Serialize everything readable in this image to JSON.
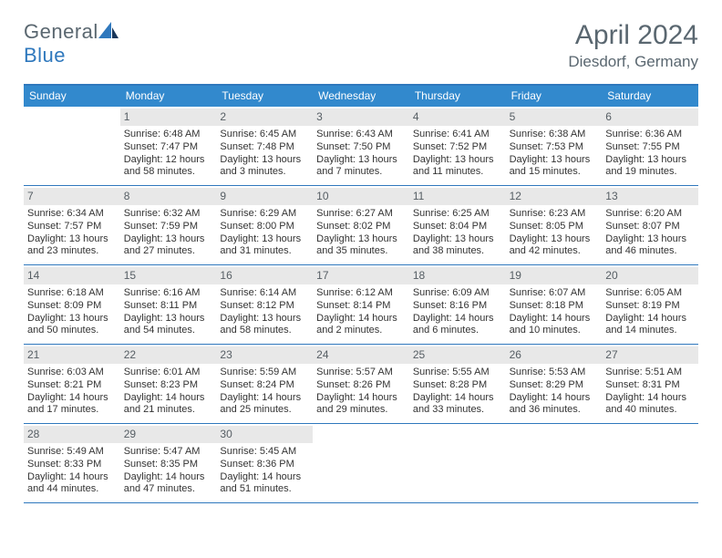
{
  "logo": {
    "word1": "General",
    "word2": "Blue",
    "colors": {
      "gray": "#5a6770",
      "blue": "#2f78bd"
    }
  },
  "title": {
    "month": "April 2024",
    "location": "Diesdorf, Germany"
  },
  "colors": {
    "headerBar": "#3289cd",
    "ruleBlue": "#2f78bd",
    "dayStrip": "#e8e8e8",
    "dayText": "#565e64",
    "bodyText": "#333333",
    "bg": "#ffffff"
  },
  "layout": {
    "cols": 7,
    "rows": 5,
    "cell_min_h": 86
  },
  "daysOfWeek": [
    "Sunday",
    "Monday",
    "Tuesday",
    "Wednesday",
    "Thursday",
    "Friday",
    "Saturday"
  ],
  "weeks": [
    [
      null,
      {
        "n": "1",
        "sr": "Sunrise: 6:48 AM",
        "ss": "Sunset: 7:47 PM",
        "d1": "Daylight: 12 hours",
        "d2": "and 58 minutes."
      },
      {
        "n": "2",
        "sr": "Sunrise: 6:45 AM",
        "ss": "Sunset: 7:48 PM",
        "d1": "Daylight: 13 hours",
        "d2": "and 3 minutes."
      },
      {
        "n": "3",
        "sr": "Sunrise: 6:43 AM",
        "ss": "Sunset: 7:50 PM",
        "d1": "Daylight: 13 hours",
        "d2": "and 7 minutes."
      },
      {
        "n": "4",
        "sr": "Sunrise: 6:41 AM",
        "ss": "Sunset: 7:52 PM",
        "d1": "Daylight: 13 hours",
        "d2": "and 11 minutes."
      },
      {
        "n": "5",
        "sr": "Sunrise: 6:38 AM",
        "ss": "Sunset: 7:53 PM",
        "d1": "Daylight: 13 hours",
        "d2": "and 15 minutes."
      },
      {
        "n": "6",
        "sr": "Sunrise: 6:36 AM",
        "ss": "Sunset: 7:55 PM",
        "d1": "Daylight: 13 hours",
        "d2": "and 19 minutes."
      }
    ],
    [
      {
        "n": "7",
        "sr": "Sunrise: 6:34 AM",
        "ss": "Sunset: 7:57 PM",
        "d1": "Daylight: 13 hours",
        "d2": "and 23 minutes."
      },
      {
        "n": "8",
        "sr": "Sunrise: 6:32 AM",
        "ss": "Sunset: 7:59 PM",
        "d1": "Daylight: 13 hours",
        "d2": "and 27 minutes."
      },
      {
        "n": "9",
        "sr": "Sunrise: 6:29 AM",
        "ss": "Sunset: 8:00 PM",
        "d1": "Daylight: 13 hours",
        "d2": "and 31 minutes."
      },
      {
        "n": "10",
        "sr": "Sunrise: 6:27 AM",
        "ss": "Sunset: 8:02 PM",
        "d1": "Daylight: 13 hours",
        "d2": "and 35 minutes."
      },
      {
        "n": "11",
        "sr": "Sunrise: 6:25 AM",
        "ss": "Sunset: 8:04 PM",
        "d1": "Daylight: 13 hours",
        "d2": "and 38 minutes."
      },
      {
        "n": "12",
        "sr": "Sunrise: 6:23 AM",
        "ss": "Sunset: 8:05 PM",
        "d1": "Daylight: 13 hours",
        "d2": "and 42 minutes."
      },
      {
        "n": "13",
        "sr": "Sunrise: 6:20 AM",
        "ss": "Sunset: 8:07 PM",
        "d1": "Daylight: 13 hours",
        "d2": "and 46 minutes."
      }
    ],
    [
      {
        "n": "14",
        "sr": "Sunrise: 6:18 AM",
        "ss": "Sunset: 8:09 PM",
        "d1": "Daylight: 13 hours",
        "d2": "and 50 minutes."
      },
      {
        "n": "15",
        "sr": "Sunrise: 6:16 AM",
        "ss": "Sunset: 8:11 PM",
        "d1": "Daylight: 13 hours",
        "d2": "and 54 minutes."
      },
      {
        "n": "16",
        "sr": "Sunrise: 6:14 AM",
        "ss": "Sunset: 8:12 PM",
        "d1": "Daylight: 13 hours",
        "d2": "and 58 minutes."
      },
      {
        "n": "17",
        "sr": "Sunrise: 6:12 AM",
        "ss": "Sunset: 8:14 PM",
        "d1": "Daylight: 14 hours",
        "d2": "and 2 minutes."
      },
      {
        "n": "18",
        "sr": "Sunrise: 6:09 AM",
        "ss": "Sunset: 8:16 PM",
        "d1": "Daylight: 14 hours",
        "d2": "and 6 minutes."
      },
      {
        "n": "19",
        "sr": "Sunrise: 6:07 AM",
        "ss": "Sunset: 8:18 PM",
        "d1": "Daylight: 14 hours",
        "d2": "and 10 minutes."
      },
      {
        "n": "20",
        "sr": "Sunrise: 6:05 AM",
        "ss": "Sunset: 8:19 PM",
        "d1": "Daylight: 14 hours",
        "d2": "and 14 minutes."
      }
    ],
    [
      {
        "n": "21",
        "sr": "Sunrise: 6:03 AM",
        "ss": "Sunset: 8:21 PM",
        "d1": "Daylight: 14 hours",
        "d2": "and 17 minutes."
      },
      {
        "n": "22",
        "sr": "Sunrise: 6:01 AM",
        "ss": "Sunset: 8:23 PM",
        "d1": "Daylight: 14 hours",
        "d2": "and 21 minutes."
      },
      {
        "n": "23",
        "sr": "Sunrise: 5:59 AM",
        "ss": "Sunset: 8:24 PM",
        "d1": "Daylight: 14 hours",
        "d2": "and 25 minutes."
      },
      {
        "n": "24",
        "sr": "Sunrise: 5:57 AM",
        "ss": "Sunset: 8:26 PM",
        "d1": "Daylight: 14 hours",
        "d2": "and 29 minutes."
      },
      {
        "n": "25",
        "sr": "Sunrise: 5:55 AM",
        "ss": "Sunset: 8:28 PM",
        "d1": "Daylight: 14 hours",
        "d2": "and 33 minutes."
      },
      {
        "n": "26",
        "sr": "Sunrise: 5:53 AM",
        "ss": "Sunset: 8:29 PM",
        "d1": "Daylight: 14 hours",
        "d2": "and 36 minutes."
      },
      {
        "n": "27",
        "sr": "Sunrise: 5:51 AM",
        "ss": "Sunset: 8:31 PM",
        "d1": "Daylight: 14 hours",
        "d2": "and 40 minutes."
      }
    ],
    [
      {
        "n": "28",
        "sr": "Sunrise: 5:49 AM",
        "ss": "Sunset: 8:33 PM",
        "d1": "Daylight: 14 hours",
        "d2": "and 44 minutes."
      },
      {
        "n": "29",
        "sr": "Sunrise: 5:47 AM",
        "ss": "Sunset: 8:35 PM",
        "d1": "Daylight: 14 hours",
        "d2": "and 47 minutes."
      },
      {
        "n": "30",
        "sr": "Sunrise: 5:45 AM",
        "ss": "Sunset: 8:36 PM",
        "d1": "Daylight: 14 hours",
        "d2": "and 51 minutes."
      },
      null,
      null,
      null,
      null
    ]
  ]
}
